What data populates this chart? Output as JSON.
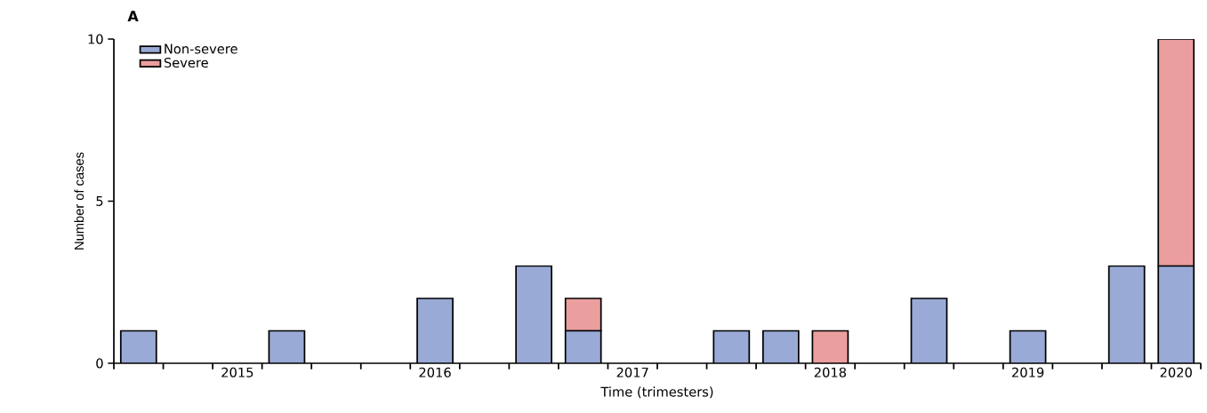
{
  "chart_data": {
    "type": "bar",
    "title": "A",
    "xlabel": "Time (trimesters)",
    "ylabel": "Number of cases",
    "categories": [
      null,
      null,
      "2015",
      null,
      null,
      null,
      "2016",
      null,
      null,
      null,
      "2017",
      null,
      null,
      null,
      "2018",
      null,
      null,
      null,
      "2019",
      null,
      null,
      "2020"
    ],
    "stacked": true,
    "series": [
      {
        "name": "Non-severe",
        "color": "#99aad6",
        "values": [
          1,
          0,
          0,
          1,
          0,
          0,
          2,
          0,
          3,
          1,
          0,
          0,
          1,
          1,
          0,
          0,
          2,
          0,
          1,
          0,
          3,
          3
        ]
      },
      {
        "name": "Severe",
        "color": "#eb9e9e",
        "values": [
          0,
          0,
          0,
          0,
          0,
          0,
          0,
          0,
          0,
          1,
          0,
          0,
          0,
          0,
          1,
          0,
          0,
          0,
          0,
          0,
          0,
          7
        ]
      }
    ],
    "ylim": [
      0,
      10
    ],
    "yticks": [
      0,
      5,
      10
    ],
    "legend": "top left",
    "grid": false
  }
}
